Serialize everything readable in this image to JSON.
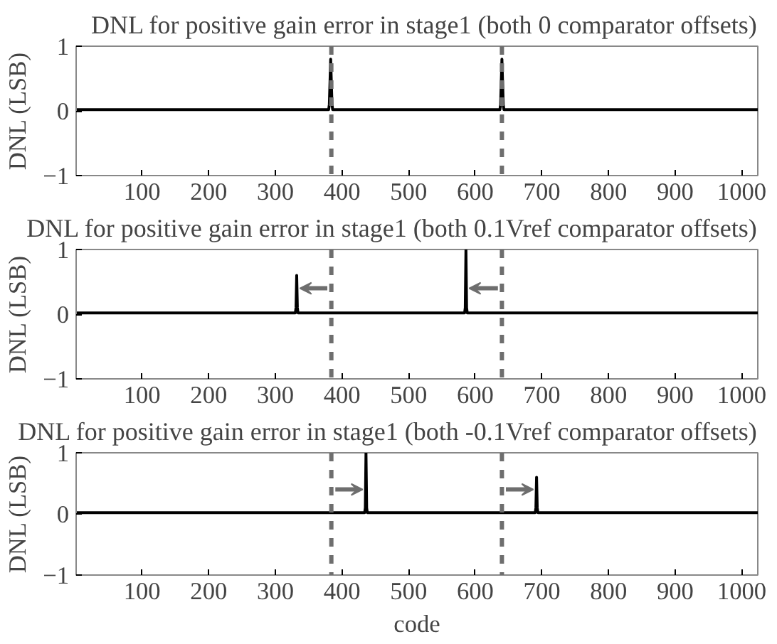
{
  "chart_data": [
    {
      "type": "line",
      "title": "DNL for positive gain error in stage1 (both 0 comparator offsets)",
      "ylabel": "DNL (LSB)",
      "x": [
        1,
        380,
        381,
        383,
        385,
        386,
        637,
        638,
        640,
        642,
        643,
        1024
      ],
      "series": [
        {
          "color": "#000000",
          "values": [
            0.02,
            0.02,
            0.1,
            0.8,
            0.1,
            0.02,
            0.02,
            0.1,
            0.8,
            0.1,
            0.02,
            0.02
          ]
        }
      ],
      "xlim": [
        1,
        1024
      ],
      "ylim": [
        -1,
        1
      ],
      "xticks": [
        100,
        200,
        300,
        400,
        500,
        600,
        700,
        800,
        900,
        1000
      ],
      "yticks": [
        -1,
        0,
        1
      ],
      "grid": false,
      "ref_lines": [
        {
          "axis": "x",
          "value": 384,
          "color": "#6e6e6e",
          "line_style": "dashed"
        },
        {
          "axis": "x",
          "value": 640,
          "color": "#6e6e6e",
          "line_style": "dashed"
        }
      ]
    },
    {
      "type": "line",
      "title": "DNL for positive gain error in stage1 (both 0.1Vref comparator offsets)",
      "ylabel": "DNL (LSB)",
      "x": [
        1,
        330,
        331,
        332,
        333,
        334,
        584,
        585,
        586,
        587,
        588,
        1024
      ],
      "series": [
        {
          "color": "#000000",
          "values": [
            0.02,
            0.02,
            0.1,
            0.6,
            0.1,
            0.02,
            0.02,
            0.1,
            1.0,
            0.1,
            0.02,
            0.02
          ]
        }
      ],
      "xlim": [
        1,
        1024
      ],
      "ylim": [
        -1,
        1
      ],
      "xticks": [
        100,
        200,
        300,
        400,
        500,
        600,
        700,
        800,
        900,
        1000
      ],
      "yticks": [
        -1,
        0,
        1
      ],
      "grid": false,
      "ref_lines": [
        {
          "axis": "x",
          "value": 384,
          "color": "#6e6e6e",
          "line_style": "dashed"
        },
        {
          "axis": "x",
          "value": 640,
          "color": "#6e6e6e",
          "line_style": "dashed"
        }
      ]
    },
    {
      "type": "line",
      "title": "DNL for positive gain error in stage1 (both -0.1Vref comparator offsets)",
      "xlabel": "code",
      "ylabel": "DNL (LSB)",
      "x": [
        1,
        434,
        435,
        436,
        437,
        438,
        690,
        691,
        692,
        693,
        694,
        1024
      ],
      "series": [
        {
          "color": "#000000",
          "values": [
            0.02,
            0.02,
            0.1,
            1.0,
            0.1,
            0.02,
            0.02,
            0.1,
            0.6,
            0.1,
            0.02,
            0.02
          ]
        }
      ],
      "xlim": [
        1,
        1024
      ],
      "ylim": [
        -1,
        1
      ],
      "xticks": [
        100,
        200,
        300,
        400,
        500,
        600,
        700,
        800,
        900,
        1000
      ],
      "yticks": [
        -1,
        0,
        1
      ],
      "grid": false,
      "ref_lines": [
        {
          "axis": "x",
          "value": 384,
          "color": "#6e6e6e",
          "line_style": "dashed"
        },
        {
          "axis": "x",
          "value": 640,
          "color": "#6e6e6e",
          "line_style": "dashed"
        }
      ]
    }
  ]
}
